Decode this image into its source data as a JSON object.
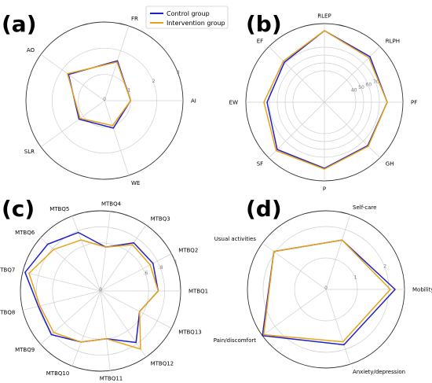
{
  "legend": {
    "items": [
      {
        "name": "Control group",
        "color": "#1f1fcc"
      },
      {
        "name": "Intervention group",
        "color": "#e8a317"
      }
    ]
  },
  "chart_data": [
    {
      "type": "radar",
      "panel_label": "(a)",
      "axes": [
        "AI",
        "FR",
        "AO",
        "SLR",
        "WE"
      ],
      "r_max": 3,
      "ticks": [
        0,
        1,
        2,
        3
      ],
      "tick_labels": [
        "0",
        "1",
        "2",
        "3"
      ],
      "series": [
        {
          "name": "Control group",
          "values": [
            1.0,
            1.6,
            1.7,
            1.2,
            1.1
          ]
        },
        {
          "name": "Intervention group",
          "values": [
            1.0,
            1.55,
            1.75,
            1.15,
            1.0
          ]
        }
      ]
    },
    {
      "type": "radar",
      "panel_label": "(b)",
      "axes": [
        "PF",
        "RLPH",
        "RLEP",
        "EF",
        "EW",
        "SF",
        "P",
        "GH"
      ],
      "r_min": 0,
      "r_max": 100,
      "ticks": [
        40,
        50,
        60,
        70
      ],
      "tick_labels": [
        "40",
        "50",
        "60",
        "70"
      ],
      "series": [
        {
          "name": "Control group",
          "values": [
            80,
            82,
            91,
            72,
            73,
            85,
            84,
            78
          ]
        },
        {
          "name": "Intervention group",
          "values": [
            80,
            80,
            91,
            74,
            77,
            87,
            85,
            79
          ]
        }
      ]
    },
    {
      "type": "radar",
      "panel_label": "(c)",
      "axes": [
        "MTBQ1",
        "MTBQ2",
        "MTBQ3",
        "MTBQ4",
        "MTBQ5",
        "MTBQ6",
        "MTBQ7",
        "MTBQ8",
        "MTBQ9",
        "MTBQ10",
        "MTBQ11",
        "MTBQ12",
        "MTBQ13"
      ],
      "r_max": 1.0,
      "ticks": [
        0,
        0.6,
        0.8,
        1.0
      ],
      "tick_labels": [
        "0",
        ".6",
        ".8",
        "1"
      ],
      "series": [
        {
          "name": "Control group",
          "values": [
            0.72,
            0.74,
            0.73,
            0.55,
            0.78,
            0.88,
            0.97,
            0.8,
            0.82,
            0.68,
            0.6,
            0.78,
            0.55
          ]
        },
        {
          "name": "Intervention group",
          "values": [
            0.72,
            0.7,
            0.7,
            0.55,
            0.68,
            0.78,
            0.92,
            0.78,
            0.78,
            0.68,
            0.6,
            0.88,
            0.55
          ]
        }
      ]
    },
    {
      "type": "radar",
      "panel_label": "(d)",
      "axes": [
        "Mobility",
        "Self-care",
        "Usual activities",
        "Pain/discomfort",
        "Anxiety/depression"
      ],
      "r_max": 2.5,
      "ticks": [
        0,
        1,
        2
      ],
      "tick_labels": [
        "0",
        "1",
        "2"
      ],
      "series": [
        {
          "name": "Control group",
          "values": [
            2.2,
            1.65,
            2.05,
            2.5,
            1.85
          ]
        },
        {
          "name": "Intervention group",
          "values": [
            2.05,
            1.65,
            2.05,
            2.45,
            1.75
          ]
        }
      ]
    }
  ]
}
